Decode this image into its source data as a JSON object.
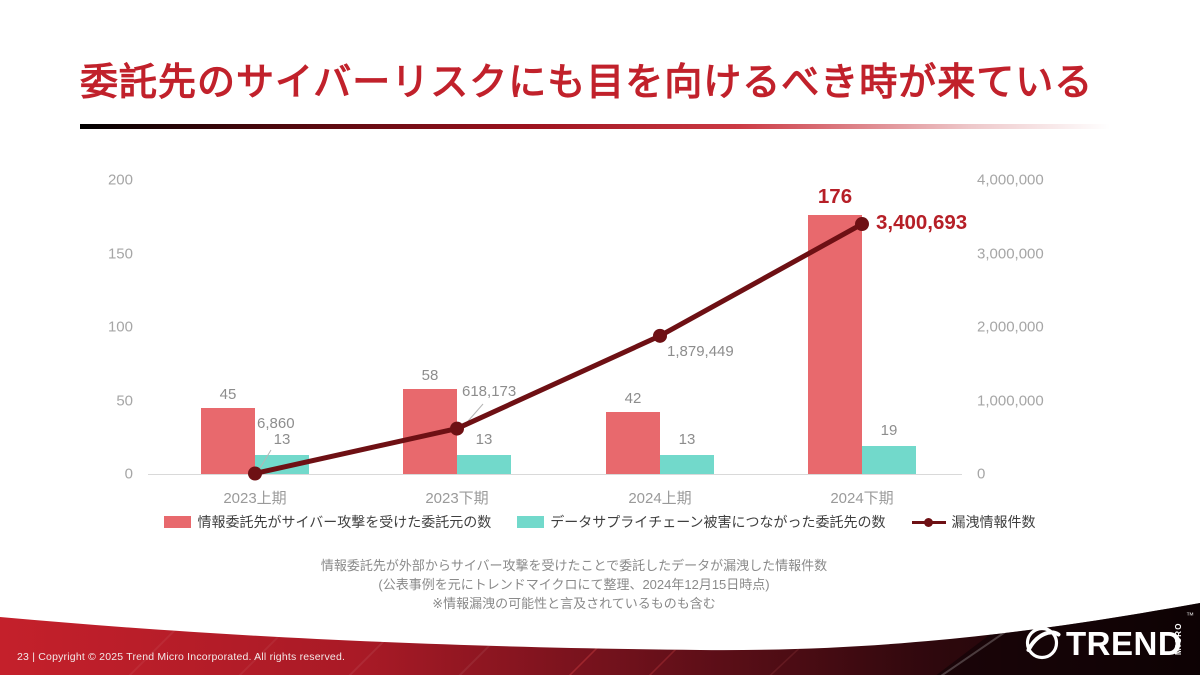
{
  "slide": {
    "title": "委託先のサイバーリスクにも目を向けるべき時が来ている",
    "copyright": "23 | Copyright © 2025 Trend Micro Incorporated. All rights reserved.",
    "logo": {
      "brand": "TREND",
      "sub": "MICRO",
      "tm": "™"
    }
  },
  "chart_data": {
    "type": "combo (bar + line, dual axis)",
    "categories": [
      "2023上期",
      "2023下期",
      "2024上期",
      "2024下期"
    ],
    "series": [
      {
        "name": "情報委託先がサイバー攻撃を受けた委託元の数",
        "type": "bar",
        "axis": "left",
        "color": "#e8696d",
        "values": [
          45,
          58,
          42,
          176
        ],
        "labels": [
          "45",
          "58",
          "42",
          "176"
        ]
      },
      {
        "name": "データサプライチェーン被害につながった委託先の数",
        "type": "bar",
        "axis": "left",
        "color": "#72d9cb",
        "values": [
          13,
          13,
          13,
          19
        ],
        "labels": [
          "13",
          "13",
          "13",
          "19"
        ]
      },
      {
        "name": "漏洩情報件数",
        "type": "line",
        "axis": "right",
        "color": "#6e1014",
        "values": [
          6860,
          618173,
          1879449,
          3400693
        ],
        "labels": [
          "6,860",
          "618,173",
          "1,879,449",
          "3,400,693"
        ]
      }
    ],
    "left_axis": {
      "min": 0,
      "max": 200,
      "ticks": [
        "0",
        "50",
        "100",
        "150",
        "200"
      ]
    },
    "right_axis": {
      "min": 0,
      "max": 4000000,
      "ticks": [
        "0",
        "1,000,000",
        "2,000,000",
        "3,000,000",
        "4,000,000"
      ]
    },
    "grid": false,
    "legend_position": "bottom",
    "emphasized_last_point": true,
    "emphasis_color": "#b61f27"
  },
  "footnote": {
    "line1": "情報委託先が外部からサイバー攻撃を受けたことで委託したデータが漏洩した情報件数",
    "line2": "(公表事例を元にトレンドマイクロにて整理、2024年12月15日時点)",
    "line3": "※情報漏洩の可能性と言及されているものも含む"
  },
  "colors": {
    "title": "#c1212b",
    "bar_red": "#e8696d",
    "bar_teal": "#72d9cb",
    "line_dark_red": "#6e1014",
    "emphasis_label": "#b61f27",
    "axis_text": "#a6a6a6",
    "value_label_text": "#8d8d8d",
    "footer_red": "#c4202b"
  }
}
